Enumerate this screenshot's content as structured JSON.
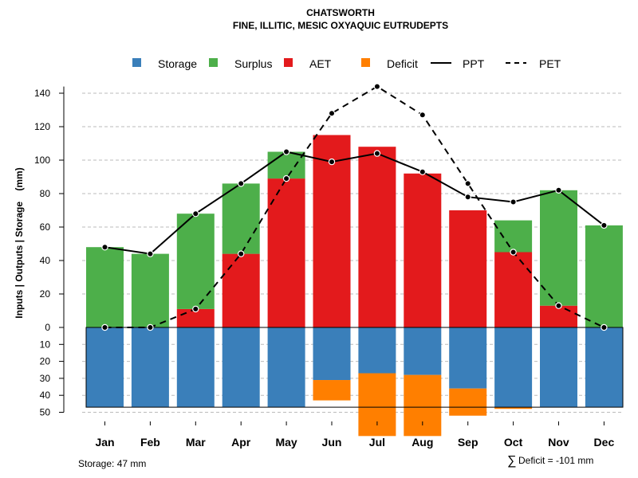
{
  "colors": {
    "storage": "#3A7FBA",
    "surplus": "#4DAF4A",
    "aet": "#E31A1C",
    "deficit": "#FF7F00",
    "ppt": "#000000",
    "pet": "#000000",
    "grid": "#BBBBBB"
  },
  "chart_data": {
    "type": "bar",
    "title": "CHATSWORTH",
    "subtitle": "FINE, ILLITIC, MESIC OXYAQUIC EUTRUDEPTS",
    "ylabel": "Inputs | Outputs | Storage    (mm)",
    "ylim": [
      -50,
      150
    ],
    "yticks_pos": [
      0,
      20,
      40,
      60,
      80,
      100,
      120,
      140
    ],
    "yticks_neg": [
      10,
      20,
      30,
      40,
      50
    ],
    "categories": [
      "Jan",
      "Feb",
      "Mar",
      "Apr",
      "May",
      "Jun",
      "Jul",
      "Aug",
      "Sep",
      "Oct",
      "Nov",
      "Dec"
    ],
    "legend": [
      "Storage",
      "Surplus",
      "AET",
      "Deficit",
      "PPT",
      "PET"
    ],
    "series": {
      "aet": [
        0,
        0,
        11,
        44,
        89,
        115,
        108,
        92,
        70,
        45,
        13,
        0
      ],
      "surplus": [
        48,
        44,
        57,
        42,
        16,
        0,
        0,
        0,
        0,
        19,
        69,
        61
      ],
      "storage": [
        47,
        47,
        47,
        47,
        47,
        31,
        27,
        28,
        36,
        47,
        47,
        47
      ],
      "deficit": [
        0,
        0,
        0,
        0,
        0,
        12,
        37,
        36,
        16,
        1,
        0,
        0
      ],
      "ppt": [
        48,
        44,
        68,
        86,
        105,
        99,
        104,
        93,
        78,
        75,
        82,
        61
      ],
      "pet": [
        0,
        0,
        11,
        44,
        89,
        128,
        144,
        127,
        86,
        45,
        13,
        0
      ]
    },
    "storage_capacity": 47,
    "notes": {
      "storage": "Storage: 47 mm",
      "deficit_symbol": "∑",
      "deficit_text": "Deficit = -101 mm"
    }
  }
}
